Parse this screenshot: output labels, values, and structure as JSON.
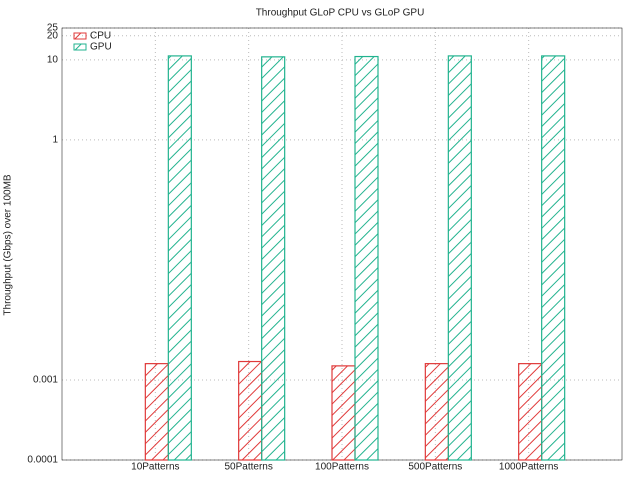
{
  "chart_data": {
    "type": "bar",
    "title": "Throughput GLoP CPU vs GLoP GPU",
    "y_label": "Throughput (Gbps) over 100MB",
    "categories": [
      "10Patterns",
      "50Patterns",
      "100Patterns",
      "500Patterns",
      "1000Patterns"
    ],
    "series": [
      {
        "name": "CPU",
        "color": "#e03a3a",
        "values": [
          0.0016,
          0.0017,
          0.0015,
          0.0016,
          0.0016
        ]
      },
      {
        "name": "GPU",
        "color": "#22b38f",
        "values": [
          11.2,
          10.9,
          11,
          11.2,
          11.2
        ]
      }
    ],
    "log_scale": true,
    "ylim": [
      0.0001,
      25
    ],
    "yticks": [
      0.0001,
      0.001,
      1,
      10,
      20,
      25
    ],
    "grid": true,
    "legend": "top-left"
  }
}
